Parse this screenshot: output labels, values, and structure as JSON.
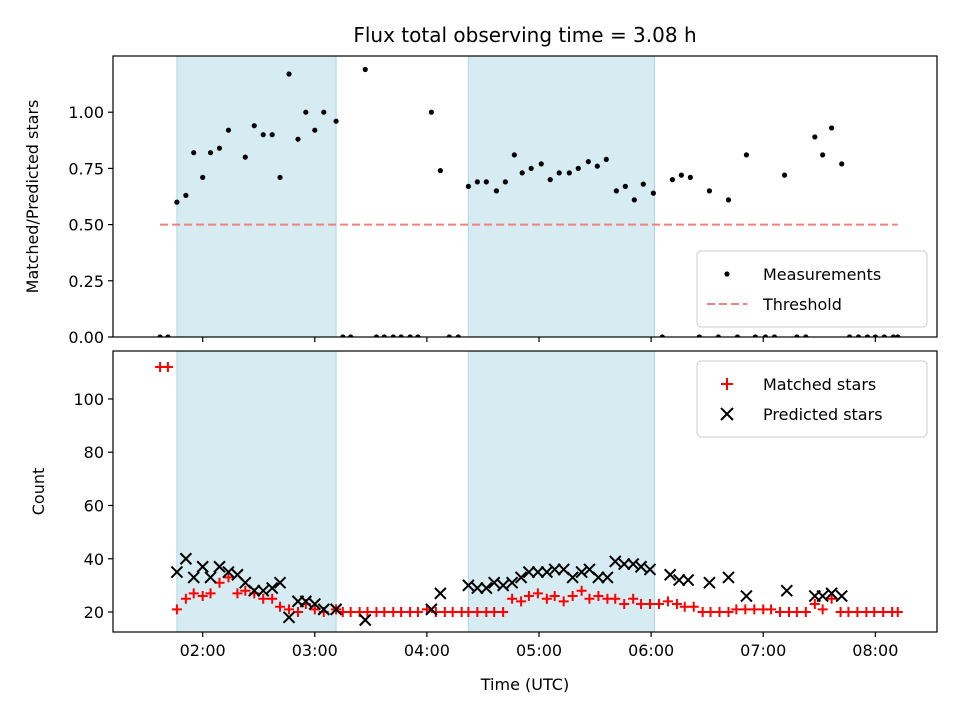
{
  "chart_data": {
    "title": "Flux total observing time = 3.08 h",
    "xlabel": "Time (UTC)",
    "x_unit": "hours UTC",
    "xlim": [
      1.2,
      8.55
    ],
    "x_ticks": [
      {
        "value": 2,
        "label": "02:00"
      },
      {
        "value": 3,
        "label": "03:00"
      },
      {
        "value": 4,
        "label": "04:00"
      },
      {
        "value": 5,
        "label": "05:00"
      },
      {
        "value": 6,
        "label": "06:00"
      },
      {
        "value": 7,
        "label": "07:00"
      },
      {
        "value": 8,
        "label": "08:00"
      }
    ],
    "shaded_intervals": [
      [
        1.77,
        3.19
      ],
      [
        4.37,
        6.03
      ]
    ],
    "shade_color": "#add8e6",
    "panels": [
      {
        "type": "scatter",
        "ylabel": "Matched/Predicted stars",
        "ylim": [
          0,
          1.25
        ],
        "y_ticks": [
          {
            "value": 0,
            "label": "0.00"
          },
          {
            "value": 0.25,
            "label": "0.25"
          },
          {
            "value": 0.5,
            "label": "0.50"
          },
          {
            "value": 0.75,
            "label": "0.75"
          },
          {
            "value": 1.0,
            "label": "1.00"
          }
        ],
        "legend_position": "lower-right",
        "threshold": {
          "name": "Threshold",
          "value": 0.5,
          "x_range": [
            1.62,
            8.2
          ],
          "color": "#f08080"
        },
        "series": [
          {
            "name": "Measurements",
            "marker": "dot",
            "color": "#000000",
            "points": [
              [
                1.62,
                0
              ],
              [
                1.69,
                0
              ],
              [
                1.77,
                0.6
              ],
              [
                1.85,
                0.63
              ],
              [
                1.92,
                0.82
              ],
              [
                2.0,
                0.71
              ],
              [
                2.07,
                0.82
              ],
              [
                2.15,
                0.84
              ],
              [
                2.23,
                0.92
              ],
              [
                2.38,
                0.8
              ],
              [
                2.46,
                0.94
              ],
              [
                2.54,
                0.9
              ],
              [
                2.62,
                0.9
              ],
              [
                2.69,
                0.71
              ],
              [
                2.77,
                1.17
              ],
              [
                2.85,
                0.88
              ],
              [
                2.92,
                1.0
              ],
              [
                3.0,
                0.92
              ],
              [
                3.08,
                1.0
              ],
              [
                3.19,
                0.96
              ],
              [
                3.25,
                0
              ],
              [
                3.32,
                0
              ],
              [
                3.45,
                1.19
              ],
              [
                3.55,
                0
              ],
              [
                3.62,
                0
              ],
              [
                3.7,
                0
              ],
              [
                3.77,
                0
              ],
              [
                3.85,
                0
              ],
              [
                3.92,
                0
              ],
              [
                4.04,
                1.0
              ],
              [
                4.12,
                0.74
              ],
              [
                4.2,
                0
              ],
              [
                4.28,
                0
              ],
              [
                4.37,
                0.67
              ],
              [
                4.45,
                0.69
              ],
              [
                4.53,
                0.69
              ],
              [
                4.62,
                0.65
              ],
              [
                4.7,
                0.69
              ],
              [
                4.78,
                0.81
              ],
              [
                4.85,
                0.73
              ],
              [
                4.93,
                0.75
              ],
              [
                5.02,
                0.77
              ],
              [
                5.1,
                0.7
              ],
              [
                5.18,
                0.73
              ],
              [
                5.27,
                0.73
              ],
              [
                5.35,
                0.75
              ],
              [
                5.44,
                0.78
              ],
              [
                5.52,
                0.76
              ],
              [
                5.6,
                0.79
              ],
              [
                5.69,
                0.65
              ],
              [
                5.77,
                0.67
              ],
              [
                5.85,
                0.61
              ],
              [
                5.93,
                0.68
              ],
              [
                6.02,
                0.64
              ],
              [
                6.1,
                0
              ],
              [
                6.19,
                0.7
              ],
              [
                6.27,
                0.72
              ],
              [
                6.35,
                0.71
              ],
              [
                6.43,
                0
              ],
              [
                6.52,
                0.65
              ],
              [
                6.6,
                0
              ],
              [
                6.69,
                0.61
              ],
              [
                6.77,
                0
              ],
              [
                6.85,
                0.81
              ],
              [
                6.93,
                0
              ],
              [
                7.02,
                0
              ],
              [
                7.1,
                0
              ],
              [
                7.19,
                0.72
              ],
              [
                7.3,
                0
              ],
              [
                7.38,
                0
              ],
              [
                7.46,
                0.89
              ],
              [
                7.53,
                0.81
              ],
              [
                7.61,
                0.93
              ],
              [
                7.7,
                0.77
              ],
              [
                7.77,
                0
              ],
              [
                7.85,
                0
              ],
              [
                7.93,
                0
              ],
              [
                8.0,
                0
              ],
              [
                8.08,
                0
              ],
              [
                8.16,
                0
              ],
              [
                8.2,
                0
              ]
            ]
          }
        ]
      },
      {
        "type": "scatter",
        "ylabel": "Count",
        "ylim": [
          12.5,
          118
        ],
        "y_ticks": [
          {
            "value": 20,
            "label": "20"
          },
          {
            "value": 40,
            "label": "40"
          },
          {
            "value": 60,
            "label": "60"
          },
          {
            "value": 80,
            "label": "80"
          },
          {
            "value": 100,
            "label": "100"
          }
        ],
        "legend_position": "upper-right",
        "series": [
          {
            "name": "Matched stars",
            "marker": "plus",
            "color": "#ff0000",
            "points": [
              [
                1.62,
                112
              ],
              [
                1.69,
                112
              ],
              [
                1.77,
                21
              ],
              [
                1.85,
                25
              ],
              [
                1.92,
                27
              ],
              [
                2.0,
                26
              ],
              [
                2.07,
                27
              ],
              [
                2.15,
                31
              ],
              [
                2.23,
                33
              ],
              [
                2.31,
                27
              ],
              [
                2.38,
                28
              ],
              [
                2.46,
                27
              ],
              [
                2.54,
                25
              ],
              [
                2.62,
                25
              ],
              [
                2.69,
                22
              ],
              [
                2.77,
                21
              ],
              [
                2.85,
                20
              ],
              [
                2.92,
                23
              ],
              [
                3.0,
                21
              ],
              [
                3.08,
                20
              ],
              [
                3.19,
                21
              ],
              [
                3.25,
                20
              ],
              [
                3.32,
                20
              ],
              [
                3.4,
                20
              ],
              [
                3.47,
                20
              ],
              [
                3.55,
                20
              ],
              [
                3.62,
                20
              ],
              [
                3.7,
                20
              ],
              [
                3.77,
                20
              ],
              [
                3.85,
                20
              ],
              [
                3.92,
                20
              ],
              [
                4.0,
                21
              ],
              [
                4.08,
                20
              ],
              [
                4.16,
                20
              ],
              [
                4.23,
                20
              ],
              [
                4.31,
                20
              ],
              [
                4.37,
                20
              ],
              [
                4.45,
                20
              ],
              [
                4.53,
                20
              ],
              [
                4.6,
                20
              ],
              [
                4.68,
                20
              ],
              [
                4.76,
                25
              ],
              [
                4.84,
                24
              ],
              [
                4.91,
                26
              ],
              [
                4.99,
                27
              ],
              [
                5.07,
                25
              ],
              [
                5.14,
                26
              ],
              [
                5.22,
                24
              ],
              [
                5.3,
                26
              ],
              [
                5.38,
                28
              ],
              [
                5.45,
                25
              ],
              [
                5.53,
                26
              ],
              [
                5.61,
                25
              ],
              [
                5.68,
                25
              ],
              [
                5.76,
                23
              ],
              [
                5.84,
                25
              ],
              [
                5.91,
                23
              ],
              [
                5.99,
                23
              ],
              [
                6.07,
                23
              ],
              [
                6.15,
                24
              ],
              [
                6.23,
                23
              ],
              [
                6.3,
                22
              ],
              [
                6.38,
                22
              ],
              [
                6.46,
                20
              ],
              [
                6.53,
                20
              ],
              [
                6.61,
                20
              ],
              [
                6.69,
                20
              ],
              [
                6.76,
                21
              ],
              [
                6.84,
                21
              ],
              [
                6.92,
                21
              ],
              [
                7.0,
                21
              ],
              [
                7.07,
                21
              ],
              [
                7.15,
                20
              ],
              [
                7.23,
                20
              ],
              [
                7.3,
                20
              ],
              [
                7.38,
                20
              ],
              [
                7.46,
                23
              ],
              [
                7.53,
                21
              ],
              [
                7.61,
                25
              ],
              [
                7.69,
                20
              ],
              [
                7.76,
                20
              ],
              [
                7.84,
                20
              ],
              [
                7.92,
                20
              ],
              [
                7.99,
                20
              ],
              [
                8.07,
                20
              ],
              [
                8.15,
                20
              ],
              [
                8.2,
                20
              ]
            ]
          },
          {
            "name": "Predicted stars",
            "marker": "x",
            "color": "#000000",
            "points": [
              [
                1.77,
                35
              ],
              [
                1.85,
                40
              ],
              [
                1.92,
                33
              ],
              [
                2.0,
                37
              ],
              [
                2.07,
                33
              ],
              [
                2.15,
                37
              ],
              [
                2.23,
                35
              ],
              [
                2.31,
                34
              ],
              [
                2.38,
                31
              ],
              [
                2.46,
                28
              ],
              [
                2.54,
                28
              ],
              [
                2.62,
                29
              ],
              [
                2.69,
                31
              ],
              [
                2.77,
                18
              ],
              [
                2.85,
                24
              ],
              [
                2.92,
                24
              ],
              [
                3.0,
                23
              ],
              [
                3.08,
                21
              ],
              [
                3.19,
                21
              ],
              [
                3.45,
                17
              ],
              [
                4.04,
                21
              ],
              [
                4.12,
                27
              ],
              [
                4.37,
                30
              ],
              [
                4.45,
                29
              ],
              [
                4.53,
                29
              ],
              [
                4.6,
                31
              ],
              [
                4.68,
                30
              ],
              [
                4.76,
                31
              ],
              [
                4.84,
                33
              ],
              [
                4.91,
                35
              ],
              [
                4.99,
                35
              ],
              [
                5.07,
                35
              ],
              [
                5.14,
                36
              ],
              [
                5.22,
                36
              ],
              [
                5.3,
                33
              ],
              [
                5.38,
                35
              ],
              [
                5.45,
                36
              ],
              [
                5.53,
                33
              ],
              [
                5.61,
                33
              ],
              [
                5.68,
                39
              ],
              [
                5.76,
                38
              ],
              [
                5.84,
                38
              ],
              [
                5.91,
                37
              ],
              [
                5.99,
                36
              ],
              [
                6.17,
                34
              ],
              [
                6.25,
                32
              ],
              [
                6.33,
                32
              ],
              [
                6.52,
                31
              ],
              [
                6.69,
                33
              ],
              [
                6.85,
                26
              ],
              [
                7.21,
                28
              ],
              [
                7.46,
                26
              ],
              [
                7.53,
                26
              ],
              [
                7.61,
                27
              ],
              [
                7.7,
                26
              ]
            ]
          }
        ]
      }
    ]
  }
}
